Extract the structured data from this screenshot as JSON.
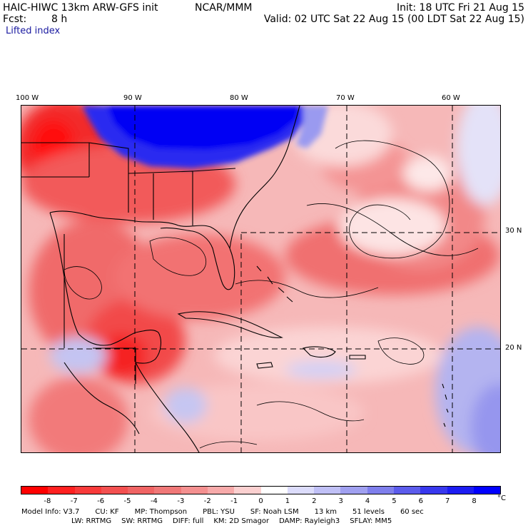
{
  "header": {
    "model_title": "HAIC-HIWC 13km ARW-GFS init",
    "center": "NCAR/MMM",
    "init": "Init: 18 UTC Fri 21 Aug 15",
    "fcst_label": "Fcst:",
    "fcst_value": "8 h",
    "valid": "Valid: 02 UTC Sat 22 Aug 15 (00 LDT Sat 22 Aug 15)",
    "field": "Lifted index"
  },
  "map": {
    "lon_labels": [
      "100 W",
      "90 W",
      "80 W",
      "70 W",
      "60 W"
    ],
    "lat_labels": [
      "30 N",
      "20 N"
    ]
  },
  "colorbar": {
    "labels": [
      "-8",
      "-7",
      "-6",
      "-5",
      "-4",
      "-3",
      "-2",
      "-1",
      "0",
      "1",
      "2",
      "3",
      "4",
      "5",
      "6",
      "7",
      "8"
    ],
    "unit": "°C",
    "colors": [
      "#ff0000",
      "#ff2020",
      "#f93a3a",
      "#f35050",
      "#f06464",
      "#f07878",
      "#f49090",
      "#f7aaaa",
      "#fbd0d0",
      "#ffffff",
      "#dcdcfb",
      "#c0c0f6",
      "#a0a0f0",
      "#7f7fec",
      "#5c5cec",
      "#3838ee",
      "#1c1cf2",
      "#0000ff"
    ]
  },
  "model_info": {
    "line1": [
      "Model Info: V3.7",
      "CU: KF",
      "MP: Thompson",
      "PBL: YSU",
      "SF: Noah LSM",
      "13 km",
      "51 levels",
      "60 sec"
    ],
    "line2": [
      "LW: RRTMG",
      "SW: RRTMG",
      "DIFF: full",
      "KM: 2D Smagor",
      "DAMP: Rayleigh3",
      "SFLAY: MM5"
    ]
  }
}
